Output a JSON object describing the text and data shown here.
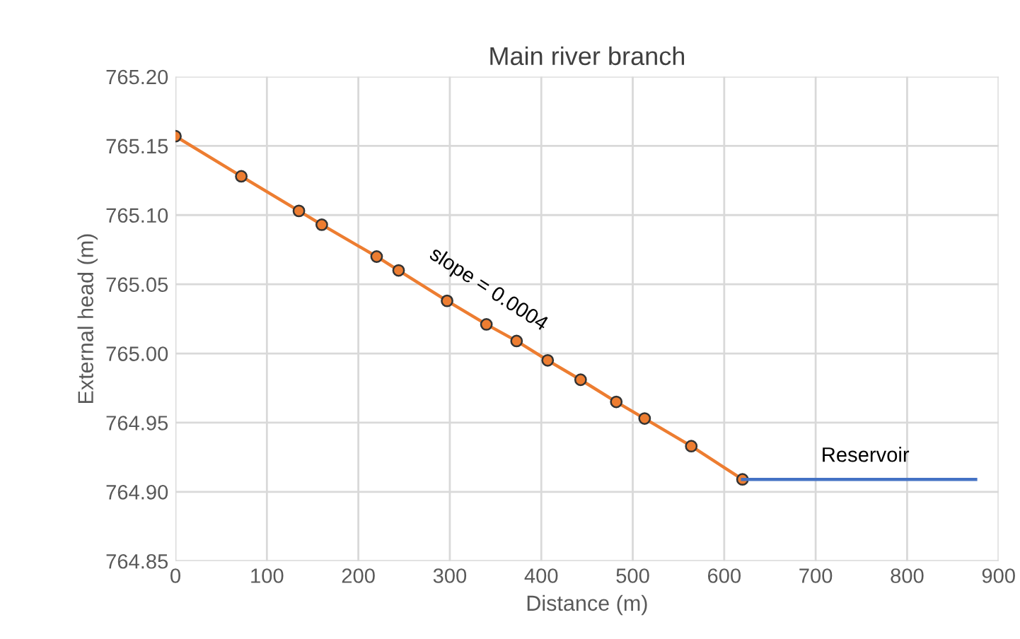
{
  "chart_data": {
    "type": "line",
    "title": "Main river branch",
    "xlabel": "Distance (m)",
    "ylabel": "External head (m)",
    "series": [
      {
        "color": "#ed7d31",
        "marker": "circle",
        "x": [
          0,
          72,
          135,
          160,
          220,
          244,
          297,
          340,
          373,
          407,
          443,
          482,
          513,
          564,
          620
        ],
        "values": [
          765.157,
          765.128,
          765.103,
          765.093,
          765.07,
          765.06,
          765.038,
          765.021,
          765.009,
          764.995,
          764.981,
          764.965,
          764.953,
          764.933,
          764.909
        ]
      },
      {
        "color": "#4472c4",
        "marker": "none",
        "x": [
          620,
          875
        ],
        "values": [
          764.909,
          764.909
        ]
      }
    ],
    "annotations": [
      "slope = 0.0004",
      "Reservoir"
    ],
    "xlim": [
      0,
      900
    ],
    "xticks": [
      0,
      100,
      200,
      300,
      400,
      500,
      600,
      700,
      800,
      900
    ],
    "ylim": [
      764.85,
      765.2
    ],
    "yticks": [
      {
        "value": 764.85,
        "label": "764.85"
      },
      {
        "value": 764.9,
        "label": "764.90"
      },
      {
        "value": 764.95,
        "label": "764.95"
      },
      {
        "value": 765.0,
        "label": "765.00"
      },
      {
        "value": 765.05,
        "label": "765.05"
      },
      {
        "value": 765.1,
        "label": "765.10"
      },
      {
        "value": 765.15,
        "label": "765.15"
      },
      {
        "value": 765.2,
        "label": "765.20"
      }
    ],
    "grid": true,
    "legend": false
  }
}
